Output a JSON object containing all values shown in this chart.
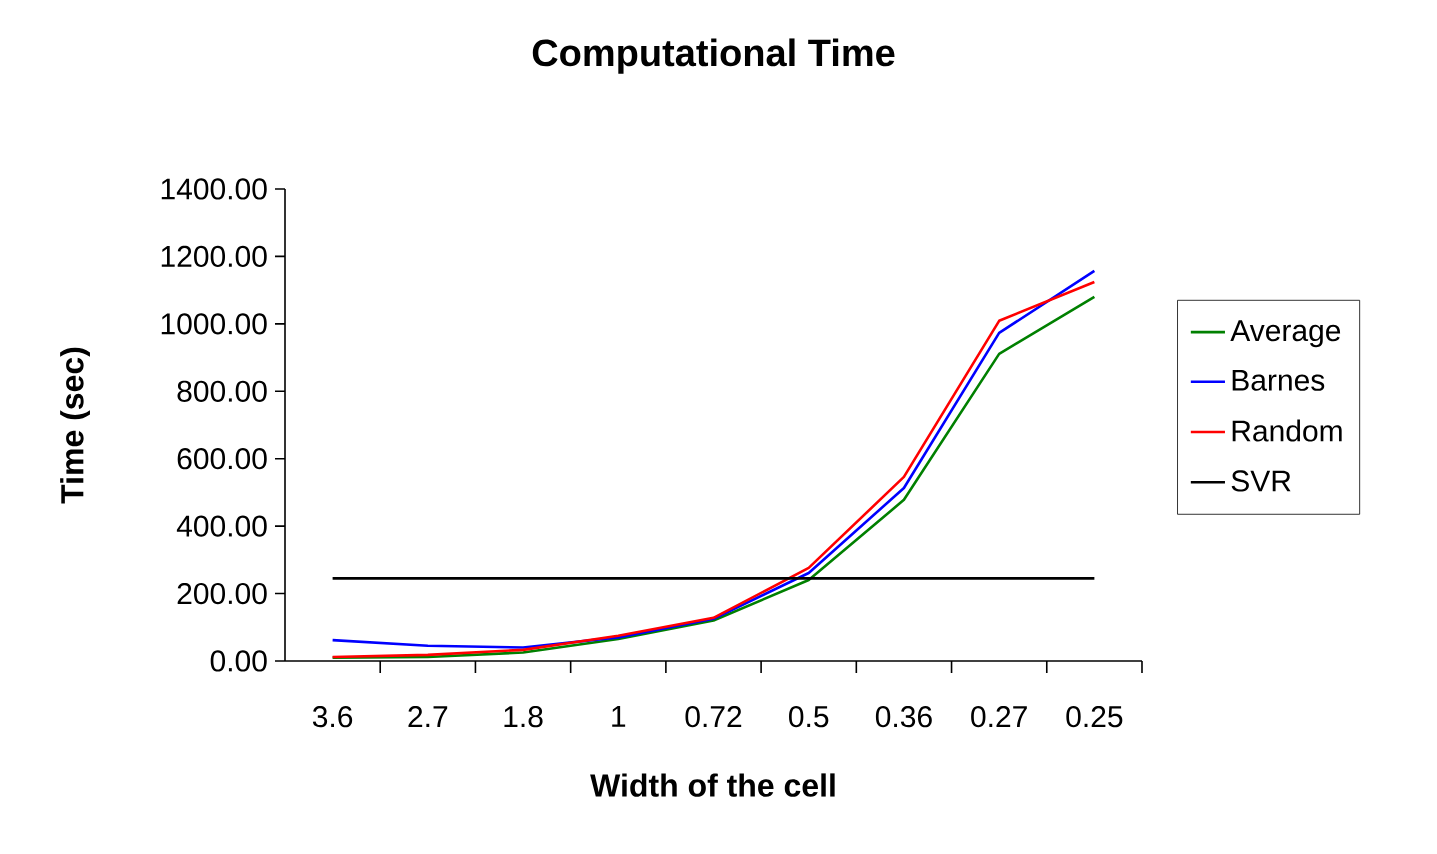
{
  "chart_data": {
    "type": "line",
    "title": "Computational Time",
    "xlabel": "Width of the cell",
    "ylabel": "Time (sec)",
    "categories": [
      "3.6",
      "2.7",
      "1.8",
      "1",
      "0.72",
      "0.5",
      "0.36",
      "0.27",
      "0.25"
    ],
    "series": [
      {
        "name": "Average",
        "color": "#008000",
        "values": [
          10,
          12,
          25,
          65,
          120,
          240,
          478,
          911,
          1080
        ]
      },
      {
        "name": "Barnes",
        "color": "#0000ff",
        "values": [
          62,
          45,
          40,
          70,
          125,
          261,
          513,
          973,
          1157
        ]
      },
      {
        "name": "Random",
        "color": "#ff0000",
        "values": [
          12,
          18,
          33,
          75,
          128,
          276,
          546,
          1009,
          1124
        ]
      },
      {
        "name": "SVR",
        "color": "#000000",
        "values": [
          245,
          245,
          245,
          245,
          245,
          245,
          245,
          245,
          245
        ]
      }
    ],
    "ylim": [
      0,
      1400
    ],
    "yticks": [
      {
        "value": 0,
        "label": "0.00"
      },
      {
        "value": 200,
        "label": "200.00"
      },
      {
        "value": 400,
        "label": "400.00"
      },
      {
        "value": 600,
        "label": "600.00"
      },
      {
        "value": 800,
        "label": "800.00"
      },
      {
        "value": 1000,
        "label": "1000.00"
      },
      {
        "value": 1200,
        "label": "1200.00"
      },
      {
        "value": 1400,
        "label": "1400.00"
      }
    ],
    "legend": "right",
    "marker": "none"
  }
}
